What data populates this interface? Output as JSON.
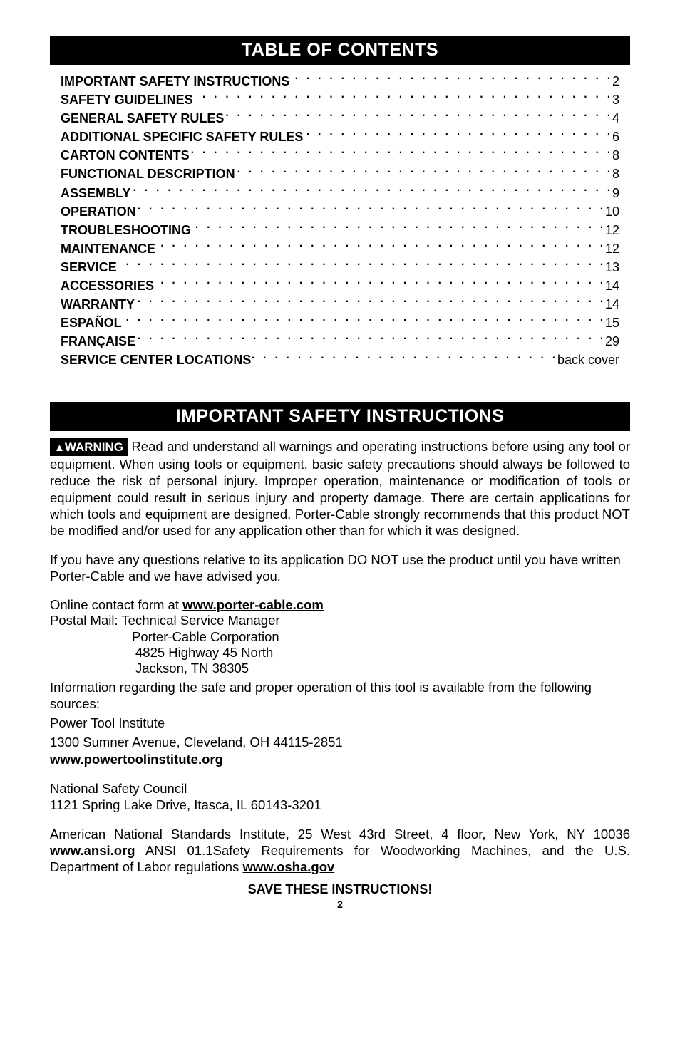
{
  "headers": {
    "toc": "TABLE OF CONTENTS",
    "safety": "IMPORTANT SAFETY INSTRUCTIONS"
  },
  "toc": [
    {
      "title": "IMPORTANT SAFETY INSTRUCTIONS",
      "page": "2"
    },
    {
      "title": "SAFETY GUIDELINES",
      "page": "3"
    },
    {
      "title": "GENERAL SAFETY RULES",
      "page": "4"
    },
    {
      "title": "ADDITIONAL SPECIFIC SAFETY RULES",
      "page": "6"
    },
    {
      "title": "CARTON CONTENTS",
      "page": "8"
    },
    {
      "title": "FUNCTIONAL DESCRIPTION",
      "page": "8"
    },
    {
      "title": "ASSEMBLY",
      "page": "9"
    },
    {
      "title": "OPERATION",
      "page": "10"
    },
    {
      "title": "TROUBLESHOOTING",
      "page": "12"
    },
    {
      "title": "MAINTENANCE",
      "page": "12"
    },
    {
      "title": "SERVICE",
      "page": "13"
    },
    {
      "title": "ACCESSORIES",
      "page": "14"
    },
    {
      "title": "WARRANTY",
      "page": "14"
    },
    {
      "title": "ESPAÑOL",
      "page": "15"
    },
    {
      "title": "FRANÇAISE",
      "page": "29"
    },
    {
      "title": "SERVICE CENTER LOCATIONS",
      "page": "back cover"
    }
  ],
  "warning_label": "WARNING",
  "warning_triangle": "▲",
  "safety_para": " Read and understand all warnings and operating instructions before using any tool or equipment.  When using tools or equipment, basic safety precautions should always be followed to reduce the risk of personal injury. Improper operation, maintenance or modification of tools or equipment could result in serious injury and property damage. There are certain applications for which tools and equipment are designed. Porter-Cable strongly recommends that this product NOT be modified and/or used for any application other than for which it was designed.",
  "questions_para": "If you have any questions relative to its application DO NOT use the product until you have written Porter-Cable and we have advised you.",
  "online_prefix": "Online contact form at ",
  "online_url": "www.porter-cable.com",
  "postal_line": "Postal Mail: Technical Service Manager",
  "postal_addr1": "Porter-Cable Corporation",
  "postal_addr2": "4825 Highway 45 North",
  "postal_addr3": "Jackson, TN 38305",
  "info_para": "Information regarding the safe and proper operation of this tool is available from the following sources:",
  "pti_name": "Power Tool Institute",
  "pti_addr": "1300 Sumner Avenue, Cleveland, OH 44115-2851",
  "pti_url": "www.powertoolinstitute.org",
  "nsc_name": "National Safety Council",
  "nsc_addr": "1121 Spring Lake Drive, Itasca, IL 60143-3201",
  "ansi_prefix": "American National Standards Institute, 25 West 43rd Street, 4 floor, New York, NY 10036 ",
  "ansi_url": "www.ansi.org",
  "ansi_mid": " ANSI 01.1Safety Requirements for Woodworking Machines, and the U.S. Department of Labor regulations ",
  "osha_url": "www.osha.gov",
  "save_instructions": "SAVE THESE INSTRUCTIONS!",
  "page_number": "2",
  "dots": ". . . . . . . . . . . . . . . . . . . . . . . . . . . . . . . . . . . . . . . . . . . . . . . . . . . . . . . . . . . . . . ."
}
